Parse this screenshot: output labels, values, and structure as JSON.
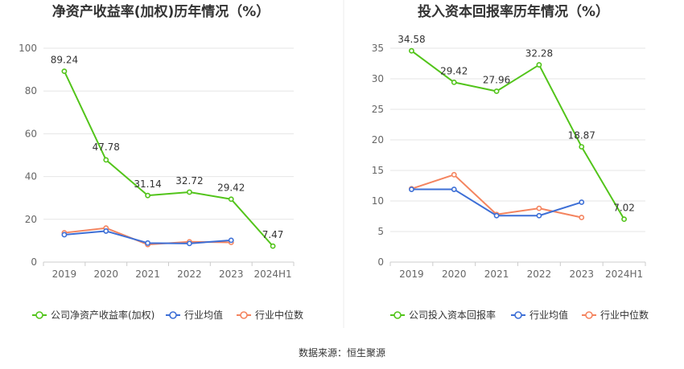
{
  "footer": {
    "source": "数据来源：恒生聚源"
  },
  "chart_data": [
    {
      "type": "line",
      "title": "净资产收益率(加权)历年情况（%）",
      "categories": [
        "2019",
        "2020",
        "2021",
        "2022",
        "2023",
        "2024H1"
      ],
      "ylim": [
        0,
        100
      ],
      "yticks": [
        0,
        20,
        40,
        60,
        80,
        100
      ],
      "grid": true,
      "legend": "bottom",
      "series": [
        {
          "name": "公司净资产收益率(加权)",
          "color": "#52c41a",
          "values": [
            89.24,
            47.78,
            31.14,
            32.72,
            29.42,
            7.47
          ],
          "labels": [
            "89.24",
            "47.78",
            "31.14",
            "32.72",
            "29.42",
            "7.47"
          ]
        },
        {
          "name": "行业均值",
          "color": "#3d6fd6",
          "values": [
            12.8,
            14.5,
            8.9,
            8.7,
            10.2,
            null
          ]
        },
        {
          "name": "行业中位数",
          "color": "#f4845f",
          "values": [
            13.7,
            15.9,
            8.2,
            9.5,
            9.2,
            null
          ]
        }
      ]
    },
    {
      "type": "line",
      "title": "投入资本回报率历年情况（%）",
      "categories": [
        "2019",
        "2020",
        "2021",
        "2022",
        "2023",
        "2024H1"
      ],
      "ylim": [
        0,
        35
      ],
      "yticks": [
        0,
        5,
        10,
        15,
        20,
        25,
        30,
        35
      ],
      "grid": true,
      "legend": "bottom",
      "series": [
        {
          "name": "公司投入资本回报率",
          "color": "#52c41a",
          "values": [
            34.58,
            29.42,
            27.96,
            32.28,
            18.87,
            7.02
          ],
          "labels": [
            "34.58",
            "29.42",
            "27.96",
            "32.28",
            "18.87",
            "7.02"
          ]
        },
        {
          "name": "行业均值",
          "color": "#3d6fd6",
          "values": [
            11.9,
            11.9,
            7.6,
            7.6,
            9.8,
            null
          ]
        },
        {
          "name": "行业中位数",
          "color": "#f4845f",
          "values": [
            12.0,
            14.3,
            7.8,
            8.8,
            7.3,
            null
          ]
        }
      ]
    }
  ]
}
